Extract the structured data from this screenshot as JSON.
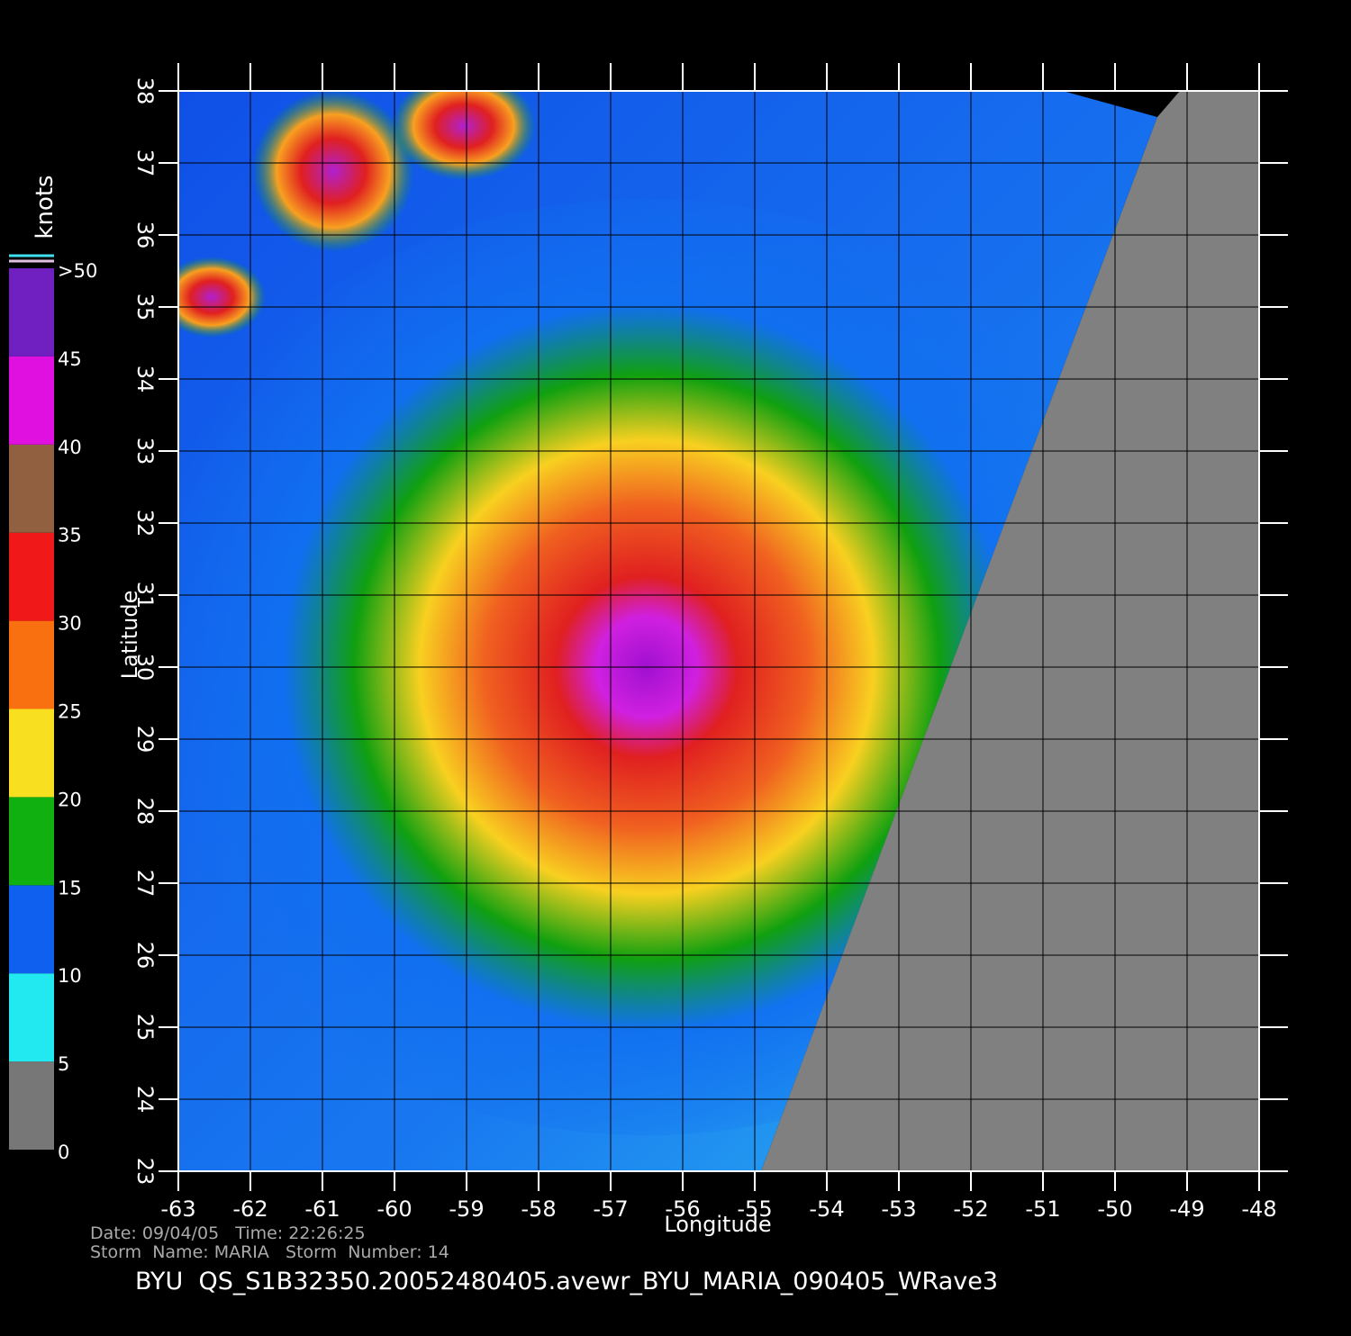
{
  "chart_data": {
    "type": "map",
    "x_label": "Longitude",
    "y_label": "Latitude",
    "xlim": [
      -63,
      -48
    ],
    "ylim": [
      23,
      38
    ],
    "xticks": [
      -63,
      -62,
      -61,
      -60,
      -59,
      -58,
      -57,
      -56,
      -55,
      -54,
      -53,
      -52,
      -51,
      -50,
      -49,
      -48
    ],
    "yticks": [
      23,
      24,
      25,
      26,
      27,
      28,
      29,
      30,
      31,
      32,
      33,
      34,
      35,
      36,
      37,
      38
    ],
    "grid": true,
    "colorbar": {
      "label": "knots",
      "ticks": [
        0,
        5,
        10,
        15,
        20,
        25,
        30,
        35,
        40,
        45,
        {
          "value": 50,
          "label": ">50"
        }
      ],
      "colors": [
        "#777777",
        "#22e8f0",
        "#1060f0",
        "#10b010",
        "#f8e020",
        "#f87010",
        "#f01818",
        "#906040",
        "#e010e0",
        "#7020c0"
      ]
    },
    "date_line": "Date: 09/04/05   Time: 22:26:25",
    "storm_line": "Storm  Name: MARIA   Storm  Number: 14",
    "file_line": "BYU  QS_S1B32350.20052480405.avewr_BYU_MARIA_090405_WRave3"
  }
}
